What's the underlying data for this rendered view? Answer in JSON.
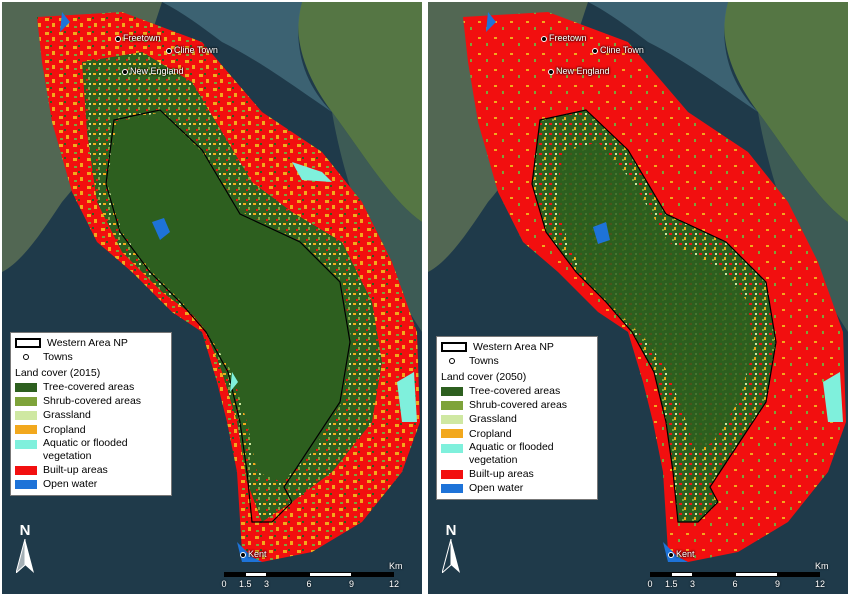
{
  "maps": [
    {
      "id": "left",
      "towns": [
        {
          "name": "Freetown"
        },
        {
          "name": "Cline Town"
        },
        {
          "name": "New England"
        },
        {
          "name": "Kent"
        }
      ],
      "legend": {
        "np_label": "Western Area NP",
        "towns_label": "Towns",
        "title": "Land cover (2015)",
        "classes": [
          {
            "label": "Tree-covered areas",
            "color": "#2d5f1f"
          },
          {
            "label": "Shrub-covered areas",
            "color": "#7ea33a"
          },
          {
            "label": "Grassland",
            "color": "#cfe8a2"
          },
          {
            "label": "Cropland",
            "color": "#f2a81d"
          },
          {
            "label": "Aquatic or flooded vegetation",
            "color": "#7ff0dc"
          },
          {
            "label": "Built-up areas",
            "color": "#f20f0f"
          },
          {
            "label": "Open water",
            "color": "#1e73d8"
          }
        ]
      },
      "north_label": "N",
      "scale": {
        "ticks": [
          "0",
          "1.5",
          "3",
          "6",
          "9",
          "12"
        ],
        "unit": "Km"
      },
      "builtup_level": 0.3
    },
    {
      "id": "right",
      "towns": [
        {
          "name": "Freetown"
        },
        {
          "name": "Cline Town"
        },
        {
          "name": "New England"
        },
        {
          "name": "Kent"
        }
      ],
      "legend": {
        "np_label": "Western Area NP",
        "towns_label": "Towns",
        "title": "Land cover (2050)",
        "classes": [
          {
            "label": "Tree-covered areas",
            "color": "#2d5f1f"
          },
          {
            "label": "Shrub-covered areas",
            "color": "#7ea33a"
          },
          {
            "label": "Grassland",
            "color": "#cfe8a2"
          },
          {
            "label": "Cropland",
            "color": "#f2a81d"
          },
          {
            "label": "Aquatic or flooded vegetation",
            "color": "#7ff0dc"
          },
          {
            "label": "Built-up areas",
            "color": "#f20f0f"
          },
          {
            "label": "Open water",
            "color": "#1e73d8"
          }
        ]
      },
      "north_label": "N",
      "scale": {
        "ticks": [
          "0",
          "1.5",
          "3",
          "6",
          "9",
          "12"
        ],
        "unit": "Km"
      },
      "builtup_level": 0.75
    }
  ]
}
